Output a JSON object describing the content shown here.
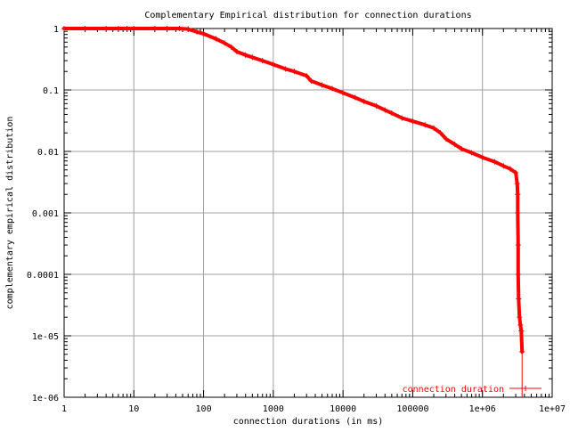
{
  "chart_data": {
    "type": "line",
    "title": "Complementary Empirical distribution for connection durations",
    "xlabel": "connection durations (in ms)",
    "ylabel": "complementary empirical distribution",
    "x_scale": "log",
    "y_scale": "log",
    "xlim": [
      1,
      10000000
    ],
    "ylim": [
      1e-06,
      1
    ],
    "grid": true,
    "legend_position": "bottom-right",
    "x_ticks": [
      {
        "value": 1,
        "label": "1"
      },
      {
        "value": 10,
        "label": "10"
      },
      {
        "value": 100,
        "label": "100"
      },
      {
        "value": 1000,
        "label": "1000"
      },
      {
        "value": 10000,
        "label": "10000"
      },
      {
        "value": 100000,
        "label": "100000"
      },
      {
        "value": 1000000,
        "label": "1e+06"
      },
      {
        "value": 10000000,
        "label": "1e+07"
      }
    ],
    "y_ticks": [
      {
        "value": 1,
        "label": "1"
      },
      {
        "value": 0.1,
        "label": "0.1"
      },
      {
        "value": 0.01,
        "label": "0.01"
      },
      {
        "value": 0.001,
        "label": "0.001"
      },
      {
        "value": 0.0001,
        "label": "0.0001"
      },
      {
        "value": 1e-05,
        "label": "1e-05"
      },
      {
        "value": 1e-06,
        "label": "1e-06"
      }
    ],
    "colors": {
      "series": "#ff0000",
      "grid": "#a0a0a0",
      "axis": "#000000"
    },
    "series": [
      {
        "name": "connection duration",
        "marker": "cross",
        "points": [
          [
            1,
            1
          ],
          [
            2,
            1
          ],
          [
            4,
            1
          ],
          [
            6,
            1
          ],
          [
            8,
            1
          ],
          [
            10,
            1
          ],
          [
            20,
            1
          ],
          [
            30,
            1
          ],
          [
            45,
            1
          ],
          [
            60,
            0.98
          ],
          [
            80,
            0.88
          ],
          [
            100,
            0.82
          ],
          [
            150,
            0.68
          ],
          [
            200,
            0.58
          ],
          [
            250,
            0.5
          ],
          [
            300,
            0.42
          ],
          [
            400,
            0.37
          ],
          [
            500,
            0.34
          ],
          [
            700,
            0.3
          ],
          [
            1000,
            0.26
          ],
          [
            1500,
            0.22
          ],
          [
            2000,
            0.2
          ],
          [
            3000,
            0.17
          ],
          [
            3500,
            0.14
          ],
          [
            5000,
            0.12
          ],
          [
            7000,
            0.105
          ],
          [
            10000,
            0.09
          ],
          [
            15000,
            0.075
          ],
          [
            20000,
            0.065
          ],
          [
            30000,
            0.055
          ],
          [
            40000,
            0.047
          ],
          [
            50000,
            0.042
          ],
          [
            70000,
            0.035
          ],
          [
            100000,
            0.031
          ],
          [
            150000,
            0.027
          ],
          [
            200000,
            0.024
          ],
          [
            250000,
            0.02
          ],
          [
            300000,
            0.016
          ],
          [
            400000,
            0.013
          ],
          [
            500000,
            0.011
          ],
          [
            700000,
            0.0095
          ],
          [
            1000000,
            0.008
          ],
          [
            1500000,
            0.0068
          ],
          [
            2000000,
            0.0058
          ],
          [
            2500000,
            0.0052
          ],
          [
            3000000,
            0.0045
          ],
          [
            3150000,
            0.003
          ],
          [
            3200000,
            0.002
          ],
          [
            3200000,
            0.001
          ],
          [
            3250000,
            0.0003
          ],
          [
            3250000,
            0.0001
          ],
          [
            3300000,
            4e-05
          ],
          [
            3400000,
            2e-05
          ],
          [
            3500000,
            1.5e-05
          ],
          [
            3600000,
            1.2e-05
          ],
          [
            3700000,
            5.5e-06
          ]
        ]
      }
    ]
  }
}
